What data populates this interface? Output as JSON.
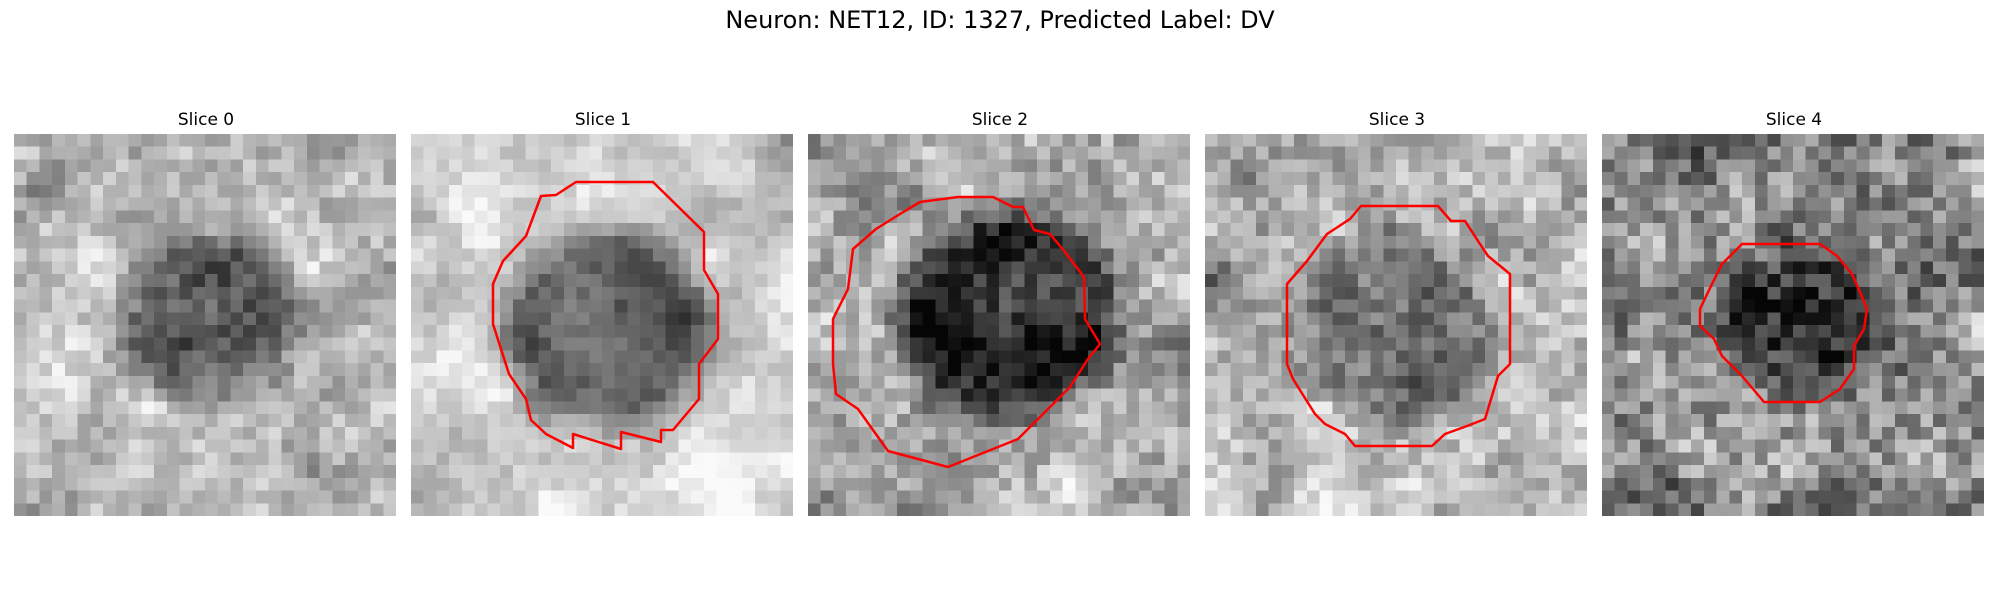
{
  "figure": {
    "title": "Neuron: NET12, ID: 1327, Predicted Label: DV"
  },
  "panels": [
    {
      "title": "Slice 0",
      "has_contour": false
    },
    {
      "title": "Slice 1",
      "has_contour": true
    },
    {
      "title": "Slice 2",
      "has_contour": true
    },
    {
      "title": "Slice 3",
      "has_contour": true
    },
    {
      "title": "Slice 4",
      "has_contour": true
    }
  ],
  "colors": {
    "contour": "#ff0000",
    "colormap": "gray"
  }
}
